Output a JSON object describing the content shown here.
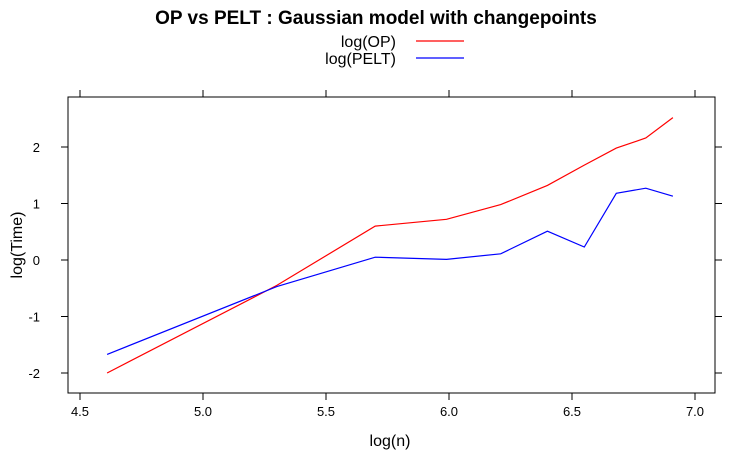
{
  "chart_data": {
    "type": "line",
    "title": "OP vs PELT : Gaussian model with changepoints",
    "xlabel": "log(n)",
    "ylabel": "log(Time)",
    "xlim": [
      4.5,
      7.0
    ],
    "ylim": [
      -2,
      2
    ],
    "xticks": [
      4.5,
      5.0,
      5.5,
      6.0,
      6.5,
      7.0
    ],
    "xtick_labels": [
      "4.5",
      "5.0",
      "5.5",
      "6.0",
      "6.5",
      "7.0"
    ],
    "yticks": [
      -2,
      -1,
      0,
      1,
      2
    ],
    "ytick_labels": [
      "-2",
      "-1",
      "0",
      "1",
      "2"
    ],
    "legend_position": "top",
    "grid": false,
    "series": [
      {
        "name": "log(OP)",
        "color": "#ff0000",
        "x": [
          4.61,
          5.3,
          5.7,
          5.99,
          6.21,
          6.4,
          6.55,
          6.68,
          6.8,
          6.91
        ],
        "y": [
          -2.0,
          -0.45,
          0.6,
          0.72,
          0.98,
          1.32,
          1.68,
          1.98,
          2.16,
          2.52
        ]
      },
      {
        "name": "log(PELT)",
        "color": "#0000ff",
        "x": [
          4.61,
          5.3,
          5.7,
          5.99,
          6.21,
          6.4,
          6.55,
          6.68,
          6.8,
          6.91
        ],
        "y": [
          -1.67,
          -0.47,
          0.05,
          0.01,
          0.11,
          0.51,
          0.23,
          1.18,
          1.27,
          1.13
        ]
      }
    ]
  }
}
